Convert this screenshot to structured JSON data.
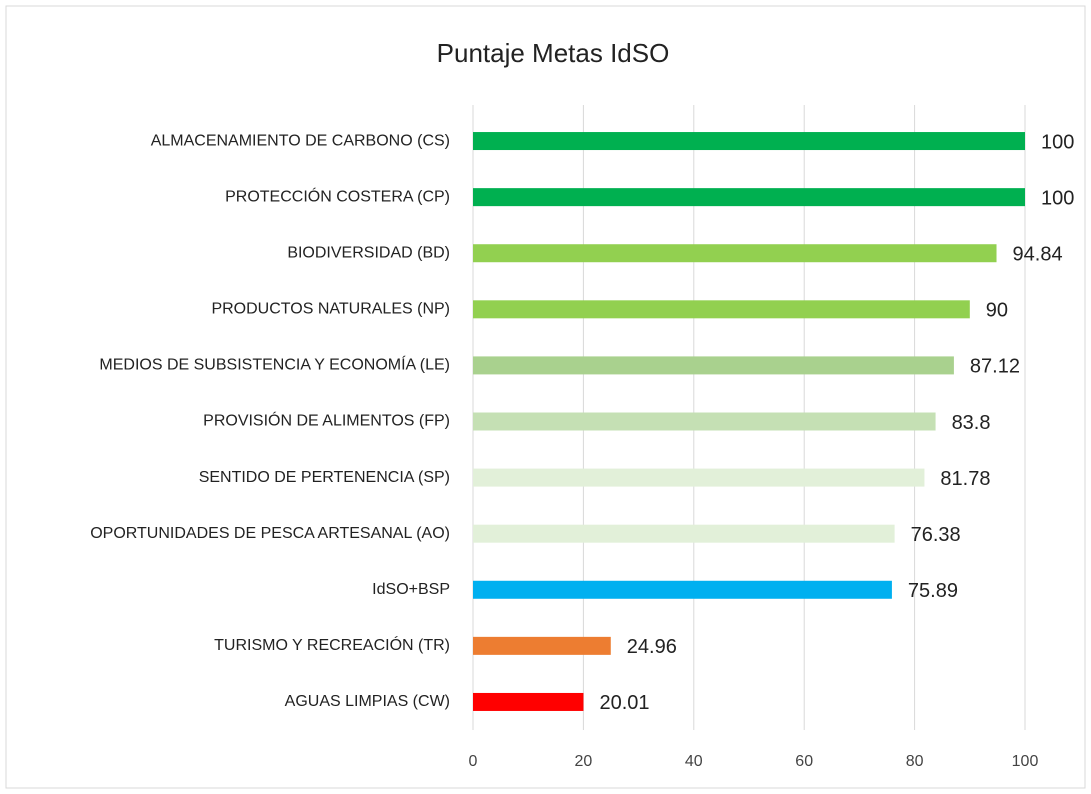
{
  "chart_data": {
    "type": "bar",
    "orientation": "horizontal",
    "title": "Puntaje Metas IdSO",
    "categories": [
      "ALMACENAMIENTO DE CARBONO (CS)",
      "PROTECCIÓN COSTERA (CP)",
      "BIODIVERSIDAD (BD)",
      "PRODUCTOS NATURALES (NP)",
      "MEDIOS DE SUBSISTENCIA Y ECONOMÍA (LE)",
      "PROVISIÓN DE ALIMENTOS (FP)",
      "SENTIDO DE PERTENENCIA (SP)",
      "OPORTUNIDADES DE PESCA ARTESANAL (AO)",
      "IdSO+BSP",
      "TURISMO Y RECREACIÓN (TR)",
      "AGUAS LIMPIAS (CW)"
    ],
    "values": [
      100,
      100,
      94.84,
      90,
      87.12,
      83.8,
      81.78,
      76.38,
      75.89,
      24.96,
      20.01
    ],
    "colors": [
      "#00b050",
      "#00b050",
      "#92d050",
      "#92d050",
      "#a9d18e",
      "#c5e0b4",
      "#e2f0d9",
      "#e2f0d9",
      "#00b0f0",
      "#ed7d31",
      "#ff0000"
    ],
    "xlim": [
      0,
      100
    ],
    "xticks": [
      0,
      20,
      40,
      60,
      80,
      100
    ],
    "grid": true
  }
}
